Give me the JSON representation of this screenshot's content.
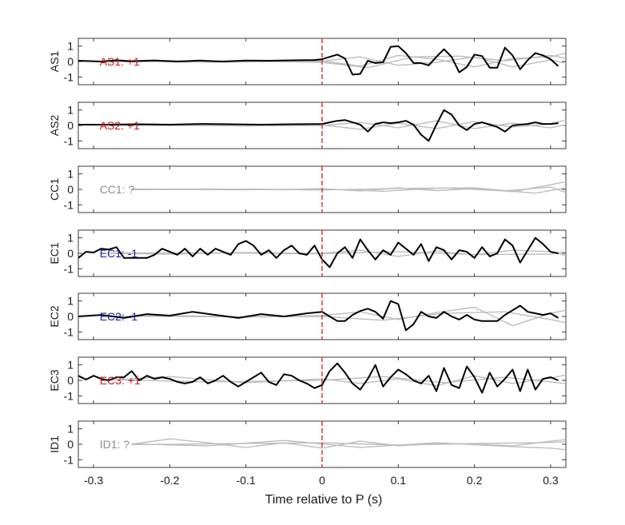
{
  "chart_data": {
    "type": "line",
    "xlabel": "Time relative to P (s)",
    "xlim": [
      -0.32,
      0.32
    ],
    "x_ticks": [
      -0.3,
      -0.2,
      -0.1,
      0,
      0.1,
      0.2,
      0.3
    ],
    "x_tick_labels": [
      "-0.3",
      "-0.2",
      "-0.1",
      "0",
      "0.1",
      "0.2",
      "0.3"
    ],
    "ylim": [
      -1.5,
      1.5
    ],
    "y_ticks": [
      1,
      0,
      -1
    ],
    "y_tick_labels": [
      "1",
      "0",
      "-1"
    ],
    "marker_line": {
      "x": 0,
      "color": "#e0262b",
      "style": "dashed"
    },
    "colors": {
      "trace": "#000000",
      "background_traces": "#bdbdbd",
      "positive_label": "#c0181f",
      "negative_label": "#1a1aa8",
      "unknown_label": "#8c8c8c"
    },
    "panels": [
      {
        "ylabel": "AS1",
        "annotation": "AS1: +1",
        "annotation_color": "#c0181f",
        "main": {
          "x": [
            -0.32,
            -0.29,
            -0.27,
            -0.25,
            -0.22,
            -0.19,
            -0.16,
            -0.13,
            -0.1,
            -0.07,
            -0.04,
            -0.01,
            0,
            0.01,
            0.02,
            0.03,
            0.04,
            0.05,
            0.06,
            0.07,
            0.08,
            0.09,
            0.1,
            0.11,
            0.12,
            0.13,
            0.14,
            0.15,
            0.16,
            0.17,
            0.18,
            0.19,
            0.2,
            0.21,
            0.22,
            0.23,
            0.24,
            0.25,
            0.26,
            0.27,
            0.28,
            0.29,
            0.3,
            0.31
          ],
          "y": [
            0.05,
            0.0,
            0.08,
            0.02,
            0.07,
            0.0,
            0.06,
            0.0,
            0.06,
            0.05,
            0.08,
            0.1,
            0.15,
            0.3,
            0.45,
            0.2,
            -0.85,
            -0.8,
            0.05,
            -0.1,
            -0.05,
            0.95,
            1.0,
            0.55,
            -0.1,
            -0.1,
            -0.25,
            0.3,
            0.8,
            0.3,
            -0.7,
            -0.35,
            0.45,
            0.35,
            -0.4,
            -0.4,
            0.9,
            0.4,
            -0.5,
            0.1,
            0.55,
            0.4,
            0.15,
            -0.3
          ]
        },
        "background": [
          {
            "x": [
              -0.28,
              -0.2,
              -0.1,
              0,
              0.05,
              0.1,
              0.15,
              0.2,
              0.25,
              0.3,
              0.32
            ],
            "y": [
              0.0,
              0.05,
              -0.03,
              0.05,
              -0.3,
              0.4,
              0.15,
              -0.35,
              0.2,
              0.3,
              0.55
            ]
          },
          {
            "x": [
              -0.28,
              -0.15,
              0,
              0.05,
              0.1,
              0.15,
              0.2,
              0.25,
              0.3,
              0.32
            ],
            "y": [
              0.02,
              -0.04,
              0.02,
              0.3,
              -0.25,
              -0.05,
              0.3,
              -0.35,
              0.1,
              -0.1
            ]
          },
          {
            "x": [
              -0.28,
              -0.1,
              0,
              0.06,
              0.12,
              0.18,
              0.24,
              0.3,
              0.32
            ],
            "y": [
              -0.02,
              0.03,
              -0.05,
              -0.4,
              0.3,
              0.35,
              0.05,
              0.4,
              0.2
            ]
          }
        ]
      },
      {
        "ylabel": "AS2",
        "annotation": "AS2: +1",
        "annotation_color": "#c0181f",
        "main": {
          "x": [
            -0.32,
            -0.28,
            -0.24,
            -0.2,
            -0.16,
            -0.12,
            -0.08,
            -0.04,
            0,
            0.01,
            0.02,
            0.03,
            0.04,
            0.05,
            0.06,
            0.07,
            0.08,
            0.09,
            0.1,
            0.11,
            0.12,
            0.13,
            0.14,
            0.15,
            0.16,
            0.17,
            0.18,
            0.19,
            0.2,
            0.21,
            0.22,
            0.23,
            0.24,
            0.25,
            0.26,
            0.27,
            0.28,
            0.29,
            0.3,
            0.31
          ],
          "y": [
            0.05,
            0.05,
            0.08,
            0.05,
            0.1,
            0.08,
            0.05,
            0.08,
            0.1,
            0.2,
            0.3,
            0.35,
            0.2,
            0.05,
            -0.4,
            0.1,
            0.2,
            0.15,
            0.2,
            0.3,
            0.05,
            -0.6,
            -1.0,
            0.05,
            1.0,
            0.7,
            0.0,
            -0.3,
            0.1,
            0.2,
            0.05,
            -0.1,
            -0.4,
            0.0,
            0.05,
            0.1,
            0.2,
            0.1,
            0.1,
            0.15
          ]
        },
        "background": [
          {
            "x": [
              -0.28,
              -0.2,
              -0.1,
              0,
              0.05,
              0.1,
              0.15,
              0.2,
              0.25,
              0.3,
              0.32
            ],
            "y": [
              0.0,
              0.04,
              -0.03,
              0.03,
              -0.25,
              0.15,
              -0.2,
              0.25,
              -0.1,
              0.1,
              0.35
            ]
          },
          {
            "x": [
              -0.28,
              -0.1,
              0,
              0.05,
              0.1,
              0.15,
              0.2,
              0.25,
              0.3,
              0.32
            ],
            "y": [
              0.02,
              -0.02,
              0.0,
              0.2,
              -0.15,
              0.3,
              -0.2,
              0.15,
              -0.15,
              0.05
            ]
          }
        ]
      },
      {
        "ylabel": "CC1",
        "annotation": "CC1: ?",
        "annotation_color": "#8c8c8c",
        "main": null,
        "background": [
          {
            "x": [
              -0.25,
              -0.15,
              -0.05,
              0,
              0.05,
              0.1,
              0.15,
              0.2,
              0.25,
              0.3,
              0.32
            ],
            "y": [
              0.0,
              0.03,
              -0.03,
              0.05,
              -0.1,
              0.1,
              -0.08,
              0.05,
              -0.15,
              0.3,
              0.5
            ]
          },
          {
            "x": [
              -0.25,
              -0.1,
              0,
              0.08,
              0.16,
              0.24,
              0.3,
              0.32
            ],
            "y": [
              0.02,
              -0.03,
              0.03,
              -0.12,
              0.1,
              -0.1,
              0.15,
              -0.2
            ]
          },
          {
            "x": [
              -0.25,
              -0.1,
              0,
              0.1,
              0.2,
              0.28,
              0.32
            ],
            "y": [
              -0.02,
              0.02,
              -0.04,
              0.06,
              0.1,
              -0.25,
              0.1
            ]
          }
        ]
      },
      {
        "ylabel": "EC1",
        "annotation": "EC1: -1",
        "annotation_color": "#1a1aa8",
        "main": {
          "x": [
            -0.32,
            -0.31,
            -0.3,
            -0.29,
            -0.28,
            -0.27,
            -0.26,
            -0.25,
            -0.24,
            -0.23,
            -0.22,
            -0.21,
            -0.2,
            -0.19,
            -0.18,
            -0.17,
            -0.16,
            -0.15,
            -0.14,
            -0.13,
            -0.12,
            -0.11,
            -0.1,
            -0.09,
            -0.08,
            -0.07,
            -0.06,
            -0.05,
            -0.04,
            -0.03,
            -0.02,
            -0.01,
            0,
            0.01,
            0.02,
            0.03,
            0.04,
            0.05,
            0.06,
            0.07,
            0.08,
            0.09,
            0.1,
            0.11,
            0.12,
            0.13,
            0.14,
            0.15,
            0.16,
            0.17,
            0.18,
            0.19,
            0.2,
            0.21,
            0.22,
            0.23,
            0.24,
            0.25,
            0.26,
            0.27,
            0.28,
            0.29,
            0.3,
            0.31
          ],
          "y": [
            -0.3,
            0.1,
            0.05,
            0.3,
            0.25,
            0.4,
            -0.3,
            -0.3,
            -0.3,
            -0.3,
            -0.1,
            0.3,
            0.1,
            -0.1,
            0.3,
            -0.2,
            0.3,
            -0.1,
            0.3,
            0.1,
            -0.1,
            0.6,
            0.8,
            0.5,
            -0.1,
            0.2,
            -0.3,
            0.2,
            0.5,
            0.0,
            -0.1,
            0.5,
            -0.4,
            -0.9,
            0.0,
            0.4,
            -0.3,
            0.9,
            0.2,
            -0.4,
            0.2,
            -0.1,
            0.7,
            0.3,
            -0.1,
            0.6,
            -0.5,
            0.4,
            0.2,
            -0.4,
            0.2,
            0.1,
            -0.3,
            0.4,
            -0.2,
            0.0,
            0.9,
            0.5,
            -0.6,
            0.2,
            1.0,
            0.6,
            0.1,
            0.0
          ]
        },
        "background": [
          {
            "x": [
              -0.28,
              -0.2,
              -0.1,
              0,
              0.05,
              0.1,
              0.15,
              0.2,
              0.25,
              0.3,
              0.32
            ],
            "y": [
              0.0,
              -0.05,
              0.05,
              0.0,
              0.2,
              -0.2,
              0.15,
              -0.1,
              0.2,
              0.1,
              -0.15
            ]
          },
          {
            "x": [
              -0.28,
              -0.15,
              0,
              0.1,
              0.2,
              0.3,
              0.32
            ],
            "y": [
              0.02,
              0.03,
              -0.03,
              0.1,
              -0.08,
              -0.05,
              0.1
            ]
          }
        ]
      },
      {
        "ylabel": "EC2",
        "annotation": "EC2: -1",
        "annotation_color": "#1a1aa8",
        "main": {
          "x": [
            -0.32,
            -0.29,
            -0.26,
            -0.23,
            -0.2,
            -0.17,
            -0.14,
            -0.11,
            -0.08,
            -0.05,
            -0.02,
            0,
            0.01,
            0.02,
            0.03,
            0.04,
            0.05,
            0.06,
            0.07,
            0.08,
            0.09,
            0.1,
            0.11,
            0.12,
            0.13,
            0.14,
            0.15,
            0.16,
            0.17,
            0.18,
            0.19,
            0.2,
            0.21,
            0.22,
            0.23,
            0.24,
            0.25,
            0.26,
            0.27,
            0.28,
            0.29,
            0.3,
            0.31
          ],
          "y": [
            0.0,
            0.1,
            -0.1,
            0.15,
            0.05,
            0.3,
            0.1,
            -0.1,
            0.15,
            0.0,
            0.2,
            0.3,
            0.0,
            -0.3,
            -0.3,
            0.1,
            0.35,
            0.5,
            0.3,
            -0.15,
            1.0,
            0.8,
            -0.9,
            -0.5,
            0.3,
            0.0,
            -0.1,
            0.3,
            0.0,
            -0.2,
            0.1,
            -0.2,
            -0.3,
            -0.3,
            -0.3,
            0.1,
            0.4,
            0.7,
            0.3,
            0.2,
            0.1,
            0.2,
            -0.1
          ]
        },
        "background": [
          {
            "x": [
              -0.28,
              -0.2,
              -0.1,
              0,
              0.05,
              0.1,
              0.15,
              0.2,
              0.25,
              0.3,
              0.32
            ],
            "y": [
              0.0,
              0.05,
              -0.03,
              0.05,
              0.3,
              -0.2,
              0.25,
              0.6,
              -0.6,
              0.2,
              0.4
            ]
          },
          {
            "x": [
              -0.28,
              -0.1,
              0,
              0.08,
              0.16,
              0.24,
              0.3,
              0.32
            ],
            "y": [
              0.02,
              -0.03,
              0.0,
              -0.25,
              0.2,
              0.3,
              -0.2,
              -0.4
            ]
          }
        ]
      },
      {
        "ylabel": "EC3",
        "annotation": "EC3: +1",
        "annotation_color": "#c0181f",
        "main": {
          "x": [
            -0.32,
            -0.31,
            -0.3,
            -0.29,
            -0.28,
            -0.27,
            -0.26,
            -0.25,
            -0.24,
            -0.23,
            -0.22,
            -0.21,
            -0.2,
            -0.19,
            -0.18,
            -0.17,
            -0.16,
            -0.15,
            -0.14,
            -0.13,
            -0.12,
            -0.11,
            -0.1,
            -0.09,
            -0.08,
            -0.07,
            -0.06,
            -0.05,
            -0.04,
            -0.03,
            -0.02,
            -0.01,
            0,
            0.01,
            0.02,
            0.03,
            0.04,
            0.05,
            0.06,
            0.07,
            0.08,
            0.09,
            0.1,
            0.11,
            0.12,
            0.13,
            0.14,
            0.15,
            0.16,
            0.17,
            0.18,
            0.19,
            0.2,
            0.21,
            0.22,
            0.23,
            0.24,
            0.25,
            0.26,
            0.27,
            0.28,
            0.29,
            0.3,
            0.31
          ],
          "y": [
            0.3,
            0.05,
            0.3,
            0.1,
            0.0,
            0.2,
            0.2,
            0.6,
            0.0,
            0.3,
            0.1,
            0.2,
            0.1,
            -0.1,
            -0.2,
            -0.1,
            0.2,
            -0.2,
            0.0,
            0.3,
            -0.1,
            -0.4,
            -0.1,
            0.2,
            0.5,
            -0.1,
            -0.3,
            0.4,
            0.3,
            0.0,
            -0.2,
            -0.5,
            -0.3,
            0.6,
            1.1,
            0.5,
            -0.2,
            -0.6,
            0.1,
            1.0,
            -0.4,
            0.2,
            0.7,
            0.4,
            0.0,
            -0.2,
            0.3,
            -0.7,
            0.8,
            -0.3,
            -0.5,
            0.9,
            0.2,
            -0.8,
            0.5,
            -0.4,
            0.1,
            0.7,
            -0.7,
            0.7,
            -0.6,
            0.1,
            0.2,
            0.0
          ]
        },
        "background": [
          {
            "x": [
              -0.28,
              -0.2,
              -0.1,
              0,
              0.05,
              0.1,
              0.15,
              0.2,
              0.25,
              0.3,
              0.32
            ],
            "y": [
              0.0,
              0.25,
              -0.15,
              0.1,
              -0.2,
              0.1,
              -0.35,
              0.3,
              -0.2,
              0.15,
              0.35
            ]
          },
          {
            "x": [
              -0.28,
              -0.15,
              0,
              0.08,
              0.16,
              0.24,
              0.3,
              0.32
            ],
            "y": [
              0.05,
              -0.1,
              0.0,
              0.25,
              -0.15,
              0.2,
              -0.1,
              -0.2
            ]
          }
        ]
      },
      {
        "ylabel": "ID1",
        "annotation": "ID1: ?",
        "annotation_color": "#8c8c8c",
        "main": null,
        "background": [
          {
            "x": [
              -0.25,
              -0.2,
              -0.15,
              -0.1,
              -0.05,
              0,
              0.05,
              0.1,
              0.15,
              0.2,
              0.25,
              0.3,
              0.32
            ],
            "y": [
              0.0,
              0.35,
              0.1,
              -0.2,
              0.1,
              -0.25,
              0.2,
              -0.1,
              0.05,
              0.0,
              -0.1,
              0.2,
              0.3
            ]
          },
          {
            "x": [
              -0.25,
              -0.15,
              -0.05,
              0.05,
              0.15,
              0.25,
              0.3,
              0.32
            ],
            "y": [
              0.02,
              -0.1,
              0.25,
              -0.2,
              0.1,
              -0.15,
              -0.25,
              -0.35
            ]
          },
          {
            "x": [
              -0.25,
              -0.1,
              0,
              0.1,
              0.2,
              0.28,
              0.32
            ],
            "y": [
              -0.02,
              0.05,
              0.1,
              -0.05,
              0.05,
              0.1,
              0.15
            ]
          }
        ]
      }
    ]
  }
}
